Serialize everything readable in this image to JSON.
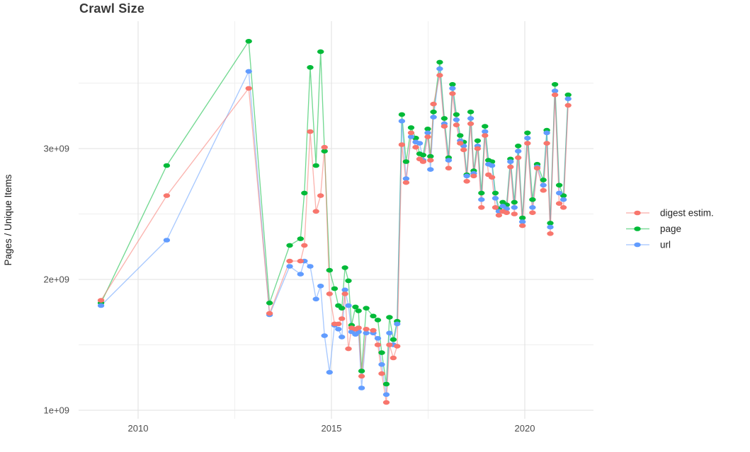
{
  "chart_data": {
    "type": "line",
    "title": "Crawl Size",
    "xlabel": "",
    "ylabel": "Pages / Unique Items",
    "x_ticks": [
      2010,
      2015,
      2020
    ],
    "x_minor_ticks": [
      2012.5,
      2017.5
    ],
    "y_tick_labels": [
      "1e+09",
      "2e+09",
      "3e+09"
    ],
    "y_tick_values_e9": [
      1,
      2,
      3
    ],
    "y_minor_ticks_e9": [
      1.5,
      2.5,
      3.5
    ],
    "xlim": [
      2008.4,
      2021.8
    ],
    "ylim_e9": [
      0.95,
      4.0
    ],
    "grid": "major and minor light-gray gridlines on white background",
    "legend_position": "right",
    "value_unit": "pages, values in units of 1e9 (billions)",
    "x_years": [
      2009.04,
      2010.74,
      2012.86,
      2013.4,
      2013.92,
      2014.2,
      2014.3,
      2014.45,
      2014.6,
      2014.72,
      2014.82,
      2014.95,
      2015.08,
      2015.18,
      2015.27,
      2015.35,
      2015.44,
      2015.52,
      2015.62,
      2015.7,
      2015.78,
      2015.9,
      2016.08,
      2016.2,
      2016.3,
      2016.42,
      2016.5,
      2016.6,
      2016.7,
      2016.82,
      2016.93,
      2017.06,
      2017.18,
      2017.28,
      2017.37,
      2017.49,
      2017.56,
      2017.64,
      2017.8,
      2017.92,
      2018.03,
      2018.13,
      2018.23,
      2018.33,
      2018.42,
      2018.5,
      2018.6,
      2018.68,
      2018.78,
      2018.88,
      2018.97,
      2019.06,
      2019.15,
      2019.24,
      2019.33,
      2019.43,
      2019.53,
      2019.63,
      2019.73,
      2019.83,
      2019.94,
      2020.07,
      2020.2,
      2020.32,
      2020.48,
      2020.57,
      2020.66,
      2020.78,
      2020.89,
      2021.0,
      2021.12
    ],
    "series": [
      {
        "name": "digest estim.",
        "color": "#F8766D",
        "values_e9": [
          1.84,
          2.64,
          3.46,
          1.74,
          2.14,
          2.14,
          2.26,
          3.13,
          2.52,
          2.64,
          3.01,
          1.89,
          1.66,
          1.66,
          1.7,
          1.89,
          1.47,
          1.63,
          1.62,
          1.63,
          1.26,
          1.62,
          1.61,
          1.5,
          1.28,
          1.06,
          1.5,
          1.4,
          1.49,
          3.03,
          2.74,
          3.12,
          3.01,
          2.92,
          2.9,
          3.09,
          2.91,
          3.34,
          3.56,
          3.17,
          2.85,
          3.42,
          3.18,
          3.04,
          2.99,
          2.75,
          3.19,
          2.79,
          3.0,
          2.55,
          3.1,
          2.8,
          2.78,
          2.55,
          2.49,
          2.52,
          2.51,
          2.86,
          2.5,
          2.93,
          2.41,
          3.04,
          2.51,
          2.85,
          2.68,
          3.04,
          2.35,
          3.41,
          2.58,
          2.55,
          3.33
        ]
      },
      {
        "name": "page",
        "color": "#00BA38",
        "values_e9": [
          1.82,
          2.87,
          3.82,
          1.82,
          2.26,
          2.31,
          2.66,
          3.62,
          2.87,
          3.74,
          2.98,
          2.07,
          1.93,
          1.8,
          1.78,
          2.09,
          1.99,
          1.65,
          1.79,
          1.76,
          1.3,
          1.78,
          1.72,
          1.69,
          1.44,
          1.2,
          1.71,
          1.54,
          1.68,
          3.26,
          2.9,
          3.16,
          3.08,
          2.96,
          2.95,
          3.15,
          2.94,
          3.28,
          3.66,
          3.23,
          2.93,
          3.49,
          3.26,
          3.1,
          3.05,
          2.8,
          3.28,
          2.83,
          3.06,
          2.66,
          3.17,
          2.91,
          2.9,
          2.66,
          2.54,
          2.59,
          2.57,
          2.92,
          2.59,
          3.02,
          2.47,
          3.12,
          2.61,
          2.88,
          2.76,
          3.14,
          2.43,
          3.49,
          2.72,
          2.64,
          3.41
        ]
      },
      {
        "name": "url",
        "color": "#619CFF",
        "values_e9": [
          1.8,
          2.3,
          3.59,
          1.73,
          2.1,
          2.04,
          2.14,
          2.1,
          1.85,
          1.95,
          1.57,
          1.29,
          1.65,
          1.62,
          1.56,
          1.92,
          1.8,
          1.6,
          1.58,
          1.6,
          1.17,
          1.59,
          1.59,
          1.55,
          1.35,
          1.12,
          1.59,
          1.5,
          1.66,
          3.21,
          2.77,
          3.09,
          3.05,
          3.04,
          2.91,
          3.12,
          2.84,
          3.24,
          3.61,
          3.19,
          2.91,
          3.46,
          3.22,
          3.06,
          3.02,
          2.79,
          3.23,
          2.81,
          3.02,
          2.61,
          3.13,
          2.88,
          2.87,
          2.62,
          2.52,
          2.56,
          2.54,
          2.9,
          2.55,
          2.98,
          2.44,
          3.08,
          2.55,
          2.86,
          2.72,
          3.12,
          2.4,
          3.44,
          2.66,
          2.61,
          3.38
        ]
      }
    ],
    "colors": {
      "grid_major": "#E2E2E2",
      "grid_minor": "#EFEFEF",
      "tick_label": "#4D4D4D",
      "title": "#3A3A3A",
      "axis_title": "#1A1A1A",
      "legend_text": "#262626",
      "background": "#FFFFFF"
    }
  }
}
